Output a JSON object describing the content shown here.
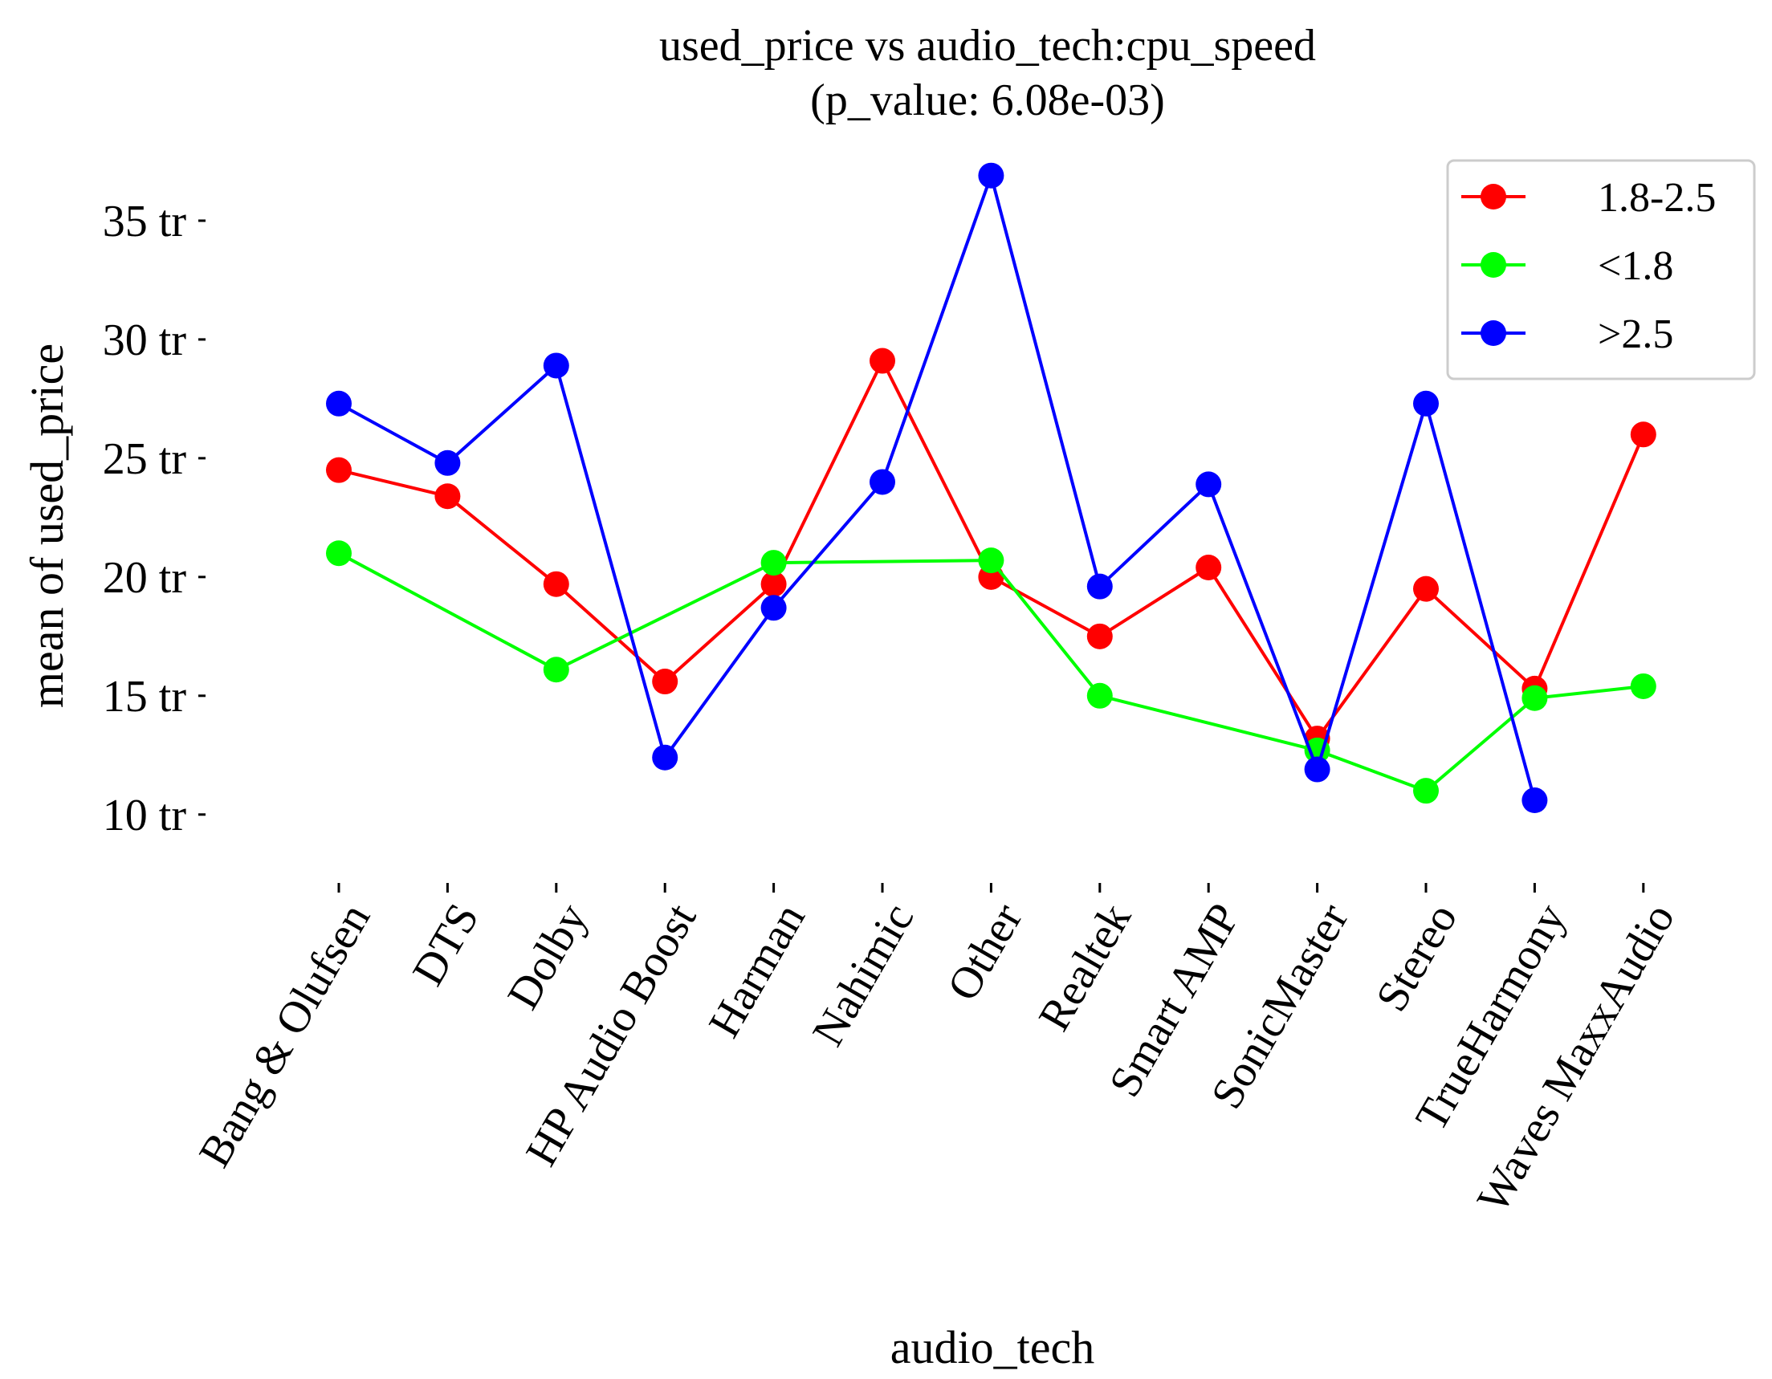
{
  "chart_data": {
    "type": "line",
    "title": "used_price vs audio_tech:cpu_speed",
    "subtitle": "(p_value: 6.08e-03)",
    "xlabel": "audio_tech",
    "ylabel": "mean of used_price",
    "categories": [
      "Bang & Olufsen",
      "DTS",
      "Dolby",
      "HP Audio Boost",
      "Harman",
      "Nahimic",
      "Other",
      "Realtek",
      "Smart AMP",
      "SonicMaster",
      "Stereo",
      "TrueHarmony",
      "Waves MaxxAudio"
    ],
    "y_ticks": [
      10,
      15,
      20,
      25,
      30,
      35
    ],
    "y_tick_labels": [
      "10 tr",
      "15 tr",
      "20 tr",
      "25 tr",
      "30 tr",
      "35 tr"
    ],
    "ylim": [
      8.1,
      37.6
    ],
    "grid": false,
    "legend_position": "top-right",
    "series": [
      {
        "name": "1.8-2.5",
        "color": "#ff0000",
        "values": [
          24.5,
          23.4,
          19.7,
          15.6,
          19.7,
          29.1,
          20.0,
          17.5,
          20.4,
          13.2,
          19.5,
          15.3,
          26.0
        ]
      },
      {
        "name": "<1.8",
        "color": "#00ff00",
        "values": [
          21.0,
          null,
          16.1,
          null,
          20.6,
          null,
          20.7,
          15.0,
          null,
          12.7,
          11.0,
          14.9,
          15.4
        ]
      },
      {
        "name": ">2.5",
        "color": "#0000ff",
        "values": [
          27.3,
          24.8,
          28.9,
          12.4,
          18.7,
          24.0,
          36.9,
          19.6,
          23.9,
          11.9,
          27.3,
          10.6,
          null
        ]
      }
    ]
  }
}
